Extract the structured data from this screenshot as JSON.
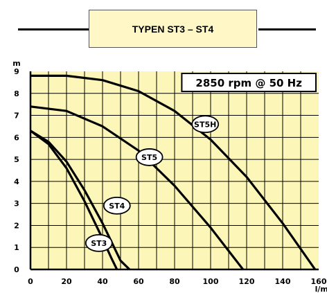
{
  "header": {
    "title": "TYPEN ST3 – ST4"
  },
  "chart_data": {
    "type": "line",
    "xlabel": "l/min",
    "ylabel": "m",
    "xlim": [
      0,
      160
    ],
    "ylim": [
      0,
      9
    ],
    "x_ticks": [
      "0",
      "20",
      "40",
      "60",
      "80",
      "100",
      "120",
      "140",
      "160"
    ],
    "y_ticks": [
      "0",
      "1",
      "2",
      "3",
      "4",
      "5",
      "6",
      "7",
      "8",
      "9"
    ],
    "annotation": "2850 rpm @ 50 Hz",
    "grid": true,
    "series": [
      {
        "name": "ST3",
        "x": [
          0,
          10,
          20,
          30,
          40,
          45,
          48
        ],
        "y": [
          6.3,
          5.7,
          4.6,
          3.1,
          1.4,
          0.5,
          0
        ]
      },
      {
        "name": "ST4",
        "x": [
          0,
          10,
          20,
          30,
          40,
          50,
          55
        ],
        "y": [
          6.3,
          5.8,
          4.9,
          3.6,
          2.1,
          0.4,
          0
        ]
      },
      {
        "name": "ST5",
        "x": [
          0,
          20,
          40,
          60,
          80,
          100,
          118
        ],
        "y": [
          7.4,
          7.2,
          6.5,
          5.4,
          3.8,
          1.9,
          0
        ]
      },
      {
        "name": "ST5H",
        "x": [
          0,
          20,
          40,
          60,
          80,
          100,
          120,
          140,
          158
        ],
        "y": [
          8.8,
          8.8,
          8.6,
          8.1,
          7.2,
          5.9,
          4.2,
          2.1,
          0
        ]
      }
    ],
    "curve_labels": [
      {
        "name": "ST3",
        "x": 38,
        "y": 1.2
      },
      {
        "name": "ST4",
        "x": 48,
        "y": 2.9
      },
      {
        "name": "ST5",
        "x": 66,
        "y": 5.1
      },
      {
        "name": "ST5H",
        "x": 97,
        "y": 6.6
      }
    ]
  }
}
